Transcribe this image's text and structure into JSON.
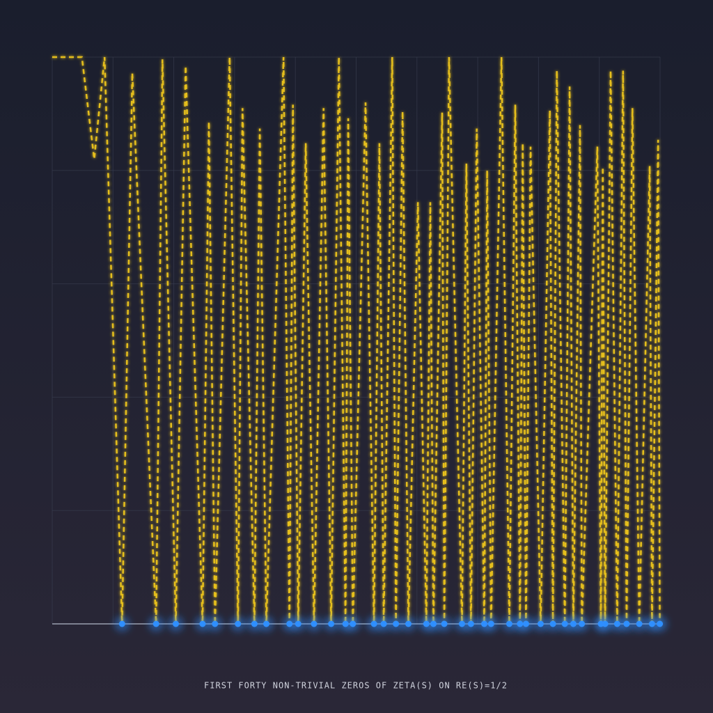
{
  "chart_data": {
    "type": "line",
    "title": "FIRST FORTY NON-TRIVIAL ZEROS OF ZETA(S) ON RE(S)=1/2",
    "x": [
      0,
      6,
      8.5,
      10.6,
      14.1347,
      16.2,
      21.022,
      22.3,
      25.0109,
      27.0,
      30.4249,
      31.7,
      32.9351,
      35.9,
      37.5862,
      38.5,
      40.9187,
      42.0,
      43.3271,
      46.8,
      48.0052,
      48.7,
      49.7738,
      51.3,
      52.9703,
      54.9,
      56.4462,
      58.0,
      59.347,
      59.9,
      60.8318,
      63.4,
      65.1125,
      66.2,
      67.0798,
      68.8,
      69.5464,
      70.9,
      72.0672,
      74.0,
      75.7047,
      76.5,
      77.1448,
      78.9,
      79.3374,
      80.3,
      82.9104,
      83.8,
      84.7355,
      85.9,
      87.4253,
      88.0,
      88.8091,
      90.9,
      92.4919,
      93.7,
      94.6513,
      95.2,
      95.8706,
      96.8,
      98.8312,
      100.7,
      101.3179,
      102.1,
      103.7255,
      104.7,
      105.4466,
      106.8,
      107.1686,
      110.3,
      111.0295,
      111.4,
      111.8747,
      113.0,
      114.3202,
      115.5,
      116.2267,
      117.4,
      118.7908,
      120.9,
      121.3701,
      122.6,
      122.9468
    ],
    "values": [
      5,
      5,
      4.1,
      5,
      0,
      4.86,
      0,
      4.98,
      0,
      4.92,
      0,
      4.43,
      0,
      5,
      0,
      4.55,
      0,
      4.37,
      0,
      5,
      0,
      4.58,
      0,
      4.24,
      0,
      4.55,
      0,
      5,
      0,
      4.46,
      0,
      4.6,
      0,
      4.24,
      0,
      5,
      0,
      4.52,
      0,
      3.72,
      0,
      3.72,
      0,
      4.51,
      0,
      5,
      0,
      4.06,
      0,
      4.37,
      0,
      4.0,
      0,
      5,
      0,
      4.58,
      0,
      4.24,
      0,
      4.21,
      0,
      4.53,
      0,
      4.88,
      0,
      4.74,
      0,
      4.4,
      0,
      4.21,
      0,
      4.03,
      0,
      4.88,
      0,
      4.88,
      0,
      4.55,
      0,
      4.04,
      0,
      4.27,
      0
    ],
    "color": "#e6bf1f",
    "zeros": [
      14.1347,
      21.022,
      25.0109,
      30.4249,
      32.9351,
      37.5862,
      40.9187,
      43.3271,
      48.0052,
      49.7738,
      52.9703,
      56.4462,
      59.347,
      60.8318,
      65.1125,
      67.0798,
      69.5464,
      72.0672,
      75.7047,
      77.1448,
      79.3374,
      82.9104,
      84.7355,
      87.4253,
      88.8091,
      92.4919,
      94.6513,
      95.8706,
      98.8312,
      101.3179,
      103.7255,
      105.4466,
      107.1686,
      111.0295,
      111.8747,
      114.3202,
      116.2267,
      118.7908,
      121.3701,
      122.9468
    ],
    "zero_color": "#2f8fff",
    "xlim": [
      0,
      123
    ],
    "ylim": [
      0,
      5
    ],
    "xticks": [
      0,
      12.3,
      24.6,
      36.9,
      49.2,
      61.5,
      73.8,
      86.1,
      98.4,
      110.7,
      123
    ],
    "yticks": [
      0,
      1,
      2,
      3,
      4,
      5
    ],
    "grid": true
  }
}
